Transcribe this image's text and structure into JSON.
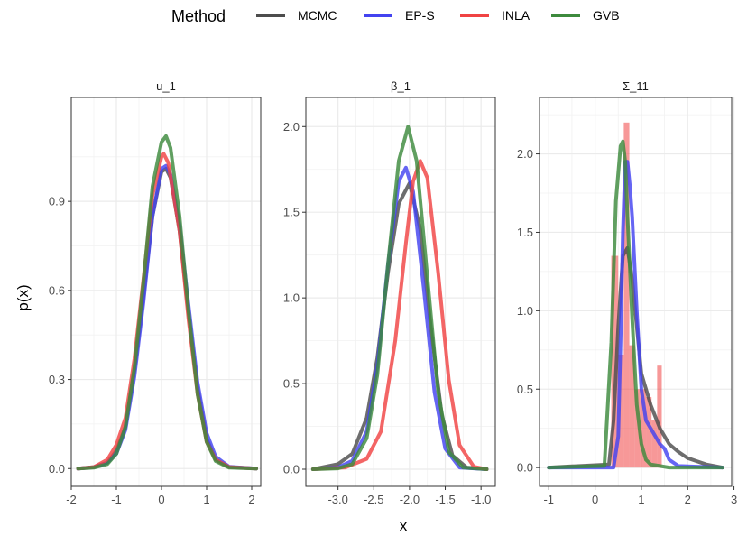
{
  "legend": {
    "title": "Method",
    "items": [
      {
        "label": "MCMC",
        "color": "#4d4d4d"
      },
      {
        "label": "EP-S",
        "color": "#4343f0"
      },
      {
        "label": "INLA",
        "color": "#f04343"
      },
      {
        "label": "GVB",
        "color": "#3d8a3d"
      }
    ]
  },
  "chart_data": [
    {
      "type": "line",
      "title": "u_1",
      "xlabel": "x",
      "ylabel": "p(x)",
      "xlim": [
        -2.0,
        2.2
      ],
      "ylim": [
        -0.06,
        1.25
      ],
      "xticks": [
        -2,
        -1,
        0,
        1,
        2
      ],
      "xtick_labels": [
        "-2",
        "-1",
        "0",
        "1",
        "2"
      ],
      "yticks": [
        0.0,
        0.3,
        0.6,
        0.9
      ],
      "ytick_labels": [
        "0.0",
        "0.3",
        "0.6",
        "0.9"
      ],
      "grid": true,
      "series": [
        {
          "name": "MCMC",
          "x": [
            -1.85,
            -1.5,
            -1.2,
            -1.0,
            -0.8,
            -0.6,
            -0.4,
            -0.2,
            0.0,
            0.1,
            0.2,
            0.4,
            0.6,
            0.8,
            1.0,
            1.2,
            1.5,
            2.1
          ],
          "y": [
            0.0,
            0.005,
            0.02,
            0.06,
            0.14,
            0.33,
            0.58,
            0.85,
            1.0,
            1.01,
            0.98,
            0.8,
            0.52,
            0.27,
            0.1,
            0.03,
            0.005,
            0.0
          ]
        },
        {
          "name": "EP-S",
          "x": [
            -1.85,
            -1.5,
            -1.2,
            -1.0,
            -0.8,
            -0.6,
            -0.4,
            -0.2,
            0.0,
            0.1,
            0.2,
            0.4,
            0.6,
            0.8,
            1.0,
            1.2,
            1.5,
            2.1
          ],
          "y": [
            0.0,
            0.004,
            0.02,
            0.05,
            0.13,
            0.31,
            0.56,
            0.85,
            1.01,
            1.02,
            0.99,
            0.82,
            0.55,
            0.29,
            0.12,
            0.04,
            0.006,
            0.0
          ]
        },
        {
          "name": "INLA",
          "x": [
            -1.85,
            -1.5,
            -1.2,
            -1.0,
            -0.8,
            -0.6,
            -0.4,
            -0.2,
            0.0,
            0.05,
            0.15,
            0.4,
            0.6,
            0.8,
            1.0,
            1.2,
            1.5,
            2.1
          ],
          "y": [
            0.0,
            0.005,
            0.03,
            0.08,
            0.17,
            0.37,
            0.64,
            0.92,
            1.05,
            1.06,
            1.03,
            0.8,
            0.5,
            0.25,
            0.09,
            0.03,
            0.005,
            0.0
          ]
        },
        {
          "name": "GVB",
          "x": [
            -1.85,
            -1.5,
            -1.2,
            -1.0,
            -0.8,
            -0.6,
            -0.4,
            -0.2,
            0.0,
            0.1,
            0.2,
            0.4,
            0.6,
            0.8,
            1.0,
            1.2,
            1.5,
            2.1
          ],
          "y": [
            0.0,
            0.003,
            0.015,
            0.05,
            0.14,
            0.34,
            0.63,
            0.95,
            1.1,
            1.12,
            1.08,
            0.85,
            0.53,
            0.25,
            0.09,
            0.025,
            0.003,
            0.0
          ]
        }
      ]
    },
    {
      "type": "line",
      "title": "β_1",
      "xlabel": "x",
      "ylabel": "p(x)",
      "xlim": [
        -3.45,
        -0.8
      ],
      "ylim": [
        -0.1,
        2.17
      ],
      "xticks": [
        -3.0,
        -2.5,
        -2.0,
        -1.5,
        -1.0
      ],
      "xtick_labels": [
        "-3.0",
        "-2.5",
        "-2.0",
        "-1.5",
        "-1.0"
      ],
      "yticks": [
        0.0,
        0.5,
        1.0,
        1.5,
        2.0
      ],
      "ytick_labels": [
        "0.0",
        "0.5",
        "1.0",
        "1.5",
        "2.0"
      ],
      "grid": true,
      "series": [
        {
          "name": "MCMC",
          "x": [
            -3.35,
            -3.0,
            -2.8,
            -2.6,
            -2.45,
            -2.3,
            -2.15,
            -2.0,
            -1.85,
            -1.7,
            -1.55,
            -1.4,
            -1.2,
            -0.92
          ],
          "y": [
            0.0,
            0.03,
            0.09,
            0.3,
            0.65,
            1.15,
            1.55,
            1.67,
            1.4,
            0.82,
            0.32,
            0.08,
            0.01,
            0.0
          ]
        },
        {
          "name": "EP-S",
          "x": [
            -3.35,
            -3.0,
            -2.8,
            -2.6,
            -2.45,
            -2.3,
            -2.15,
            -2.05,
            -1.95,
            -1.8,
            -1.65,
            -1.5,
            -1.3,
            -0.92
          ],
          "y": [
            0.0,
            0.01,
            0.05,
            0.22,
            0.6,
            1.2,
            1.68,
            1.76,
            1.62,
            1.05,
            0.45,
            0.12,
            0.01,
            0.0
          ]
        },
        {
          "name": "INLA",
          "x": [
            -3.35,
            -2.9,
            -2.6,
            -2.4,
            -2.2,
            -2.05,
            -1.95,
            -1.85,
            -1.75,
            -1.6,
            -1.45,
            -1.3,
            -1.1,
            -0.92
          ],
          "y": [
            0.0,
            0.01,
            0.06,
            0.22,
            0.75,
            1.32,
            1.68,
            1.8,
            1.7,
            1.15,
            0.52,
            0.14,
            0.015,
            0.0
          ]
        },
        {
          "name": "GVB",
          "x": [
            -3.35,
            -3.0,
            -2.8,
            -2.6,
            -2.45,
            -2.3,
            -2.15,
            -2.02,
            -1.9,
            -1.75,
            -1.6,
            -1.45,
            -1.25,
            -0.92
          ],
          "y": [
            0.0,
            0.005,
            0.03,
            0.18,
            0.55,
            1.2,
            1.8,
            2.0,
            1.8,
            1.12,
            0.45,
            0.1,
            0.01,
            0.0
          ]
        }
      ]
    },
    {
      "type": "line",
      "title": "Σ_11",
      "xlabel": "x",
      "ylabel": "p(x)",
      "xlim": [
        -1.2,
        2.95
      ],
      "ylim": [
        -0.12,
        2.36
      ],
      "xticks": [
        -1,
        0,
        1,
        2,
        3
      ],
      "xtick_labels": [
        "-1",
        "0",
        "1",
        "2",
        "3"
      ],
      "yticks": [
        0.0,
        0.5,
        1.0,
        1.5,
        2.0
      ],
      "ytick_labels": [
        "0.0",
        "0.5",
        "1.0",
        "1.5",
        "2.0"
      ],
      "grid": true,
      "histogram": {
        "name": "INLA",
        "bin_edges": [
          0.35,
          0.5,
          0.62,
          0.74,
          0.86,
          0.98,
          1.1,
          1.22,
          1.34,
          1.44
        ],
        "heights": [
          1.35,
          0.72,
          2.2,
          0.78,
          0.5,
          0.5,
          0.45,
          0.3,
          0.65
        ]
      },
      "series": [
        {
          "name": "MCMC",
          "x": [
            -1.0,
            0.3,
            0.4,
            0.5,
            0.6,
            0.7,
            0.8,
            0.9,
            1.0,
            1.2,
            1.4,
            1.6,
            1.8,
            2.0,
            2.4,
            2.75
          ],
          "y": [
            0.0,
            0.02,
            0.3,
            0.9,
            1.35,
            1.4,
            1.2,
            0.9,
            0.6,
            0.4,
            0.25,
            0.15,
            0.1,
            0.06,
            0.02,
            0.0
          ]
        },
        {
          "name": "EP-S",
          "x": [
            -1.0,
            0.4,
            0.5,
            0.55,
            0.6,
            0.65,
            0.7,
            0.75,
            0.8,
            0.9,
            1.0,
            1.1,
            1.2,
            1.3,
            1.4,
            1.5,
            1.6,
            1.8,
            2.75
          ],
          "y": [
            0.0,
            0.0,
            0.2,
            0.8,
            1.5,
            1.95,
            1.95,
            1.8,
            1.6,
            1.0,
            0.5,
            0.3,
            0.25,
            0.2,
            0.15,
            0.12,
            0.05,
            0.01,
            0.0
          ]
        },
        {
          "name": "GVB",
          "x": [
            -1.0,
            0.2,
            0.35,
            0.45,
            0.55,
            0.6,
            0.65,
            0.7,
            0.8,
            0.9,
            1.0,
            1.1,
            1.2,
            1.4,
            1.6,
            1.8,
            2.75
          ],
          "y": [
            0.0,
            0.01,
            0.8,
            1.7,
            2.05,
            2.08,
            1.95,
            1.6,
            0.95,
            0.4,
            0.15,
            0.05,
            0.02,
            0.01,
            0.0,
            0.0,
            0.0
          ]
        }
      ]
    }
  ]
}
